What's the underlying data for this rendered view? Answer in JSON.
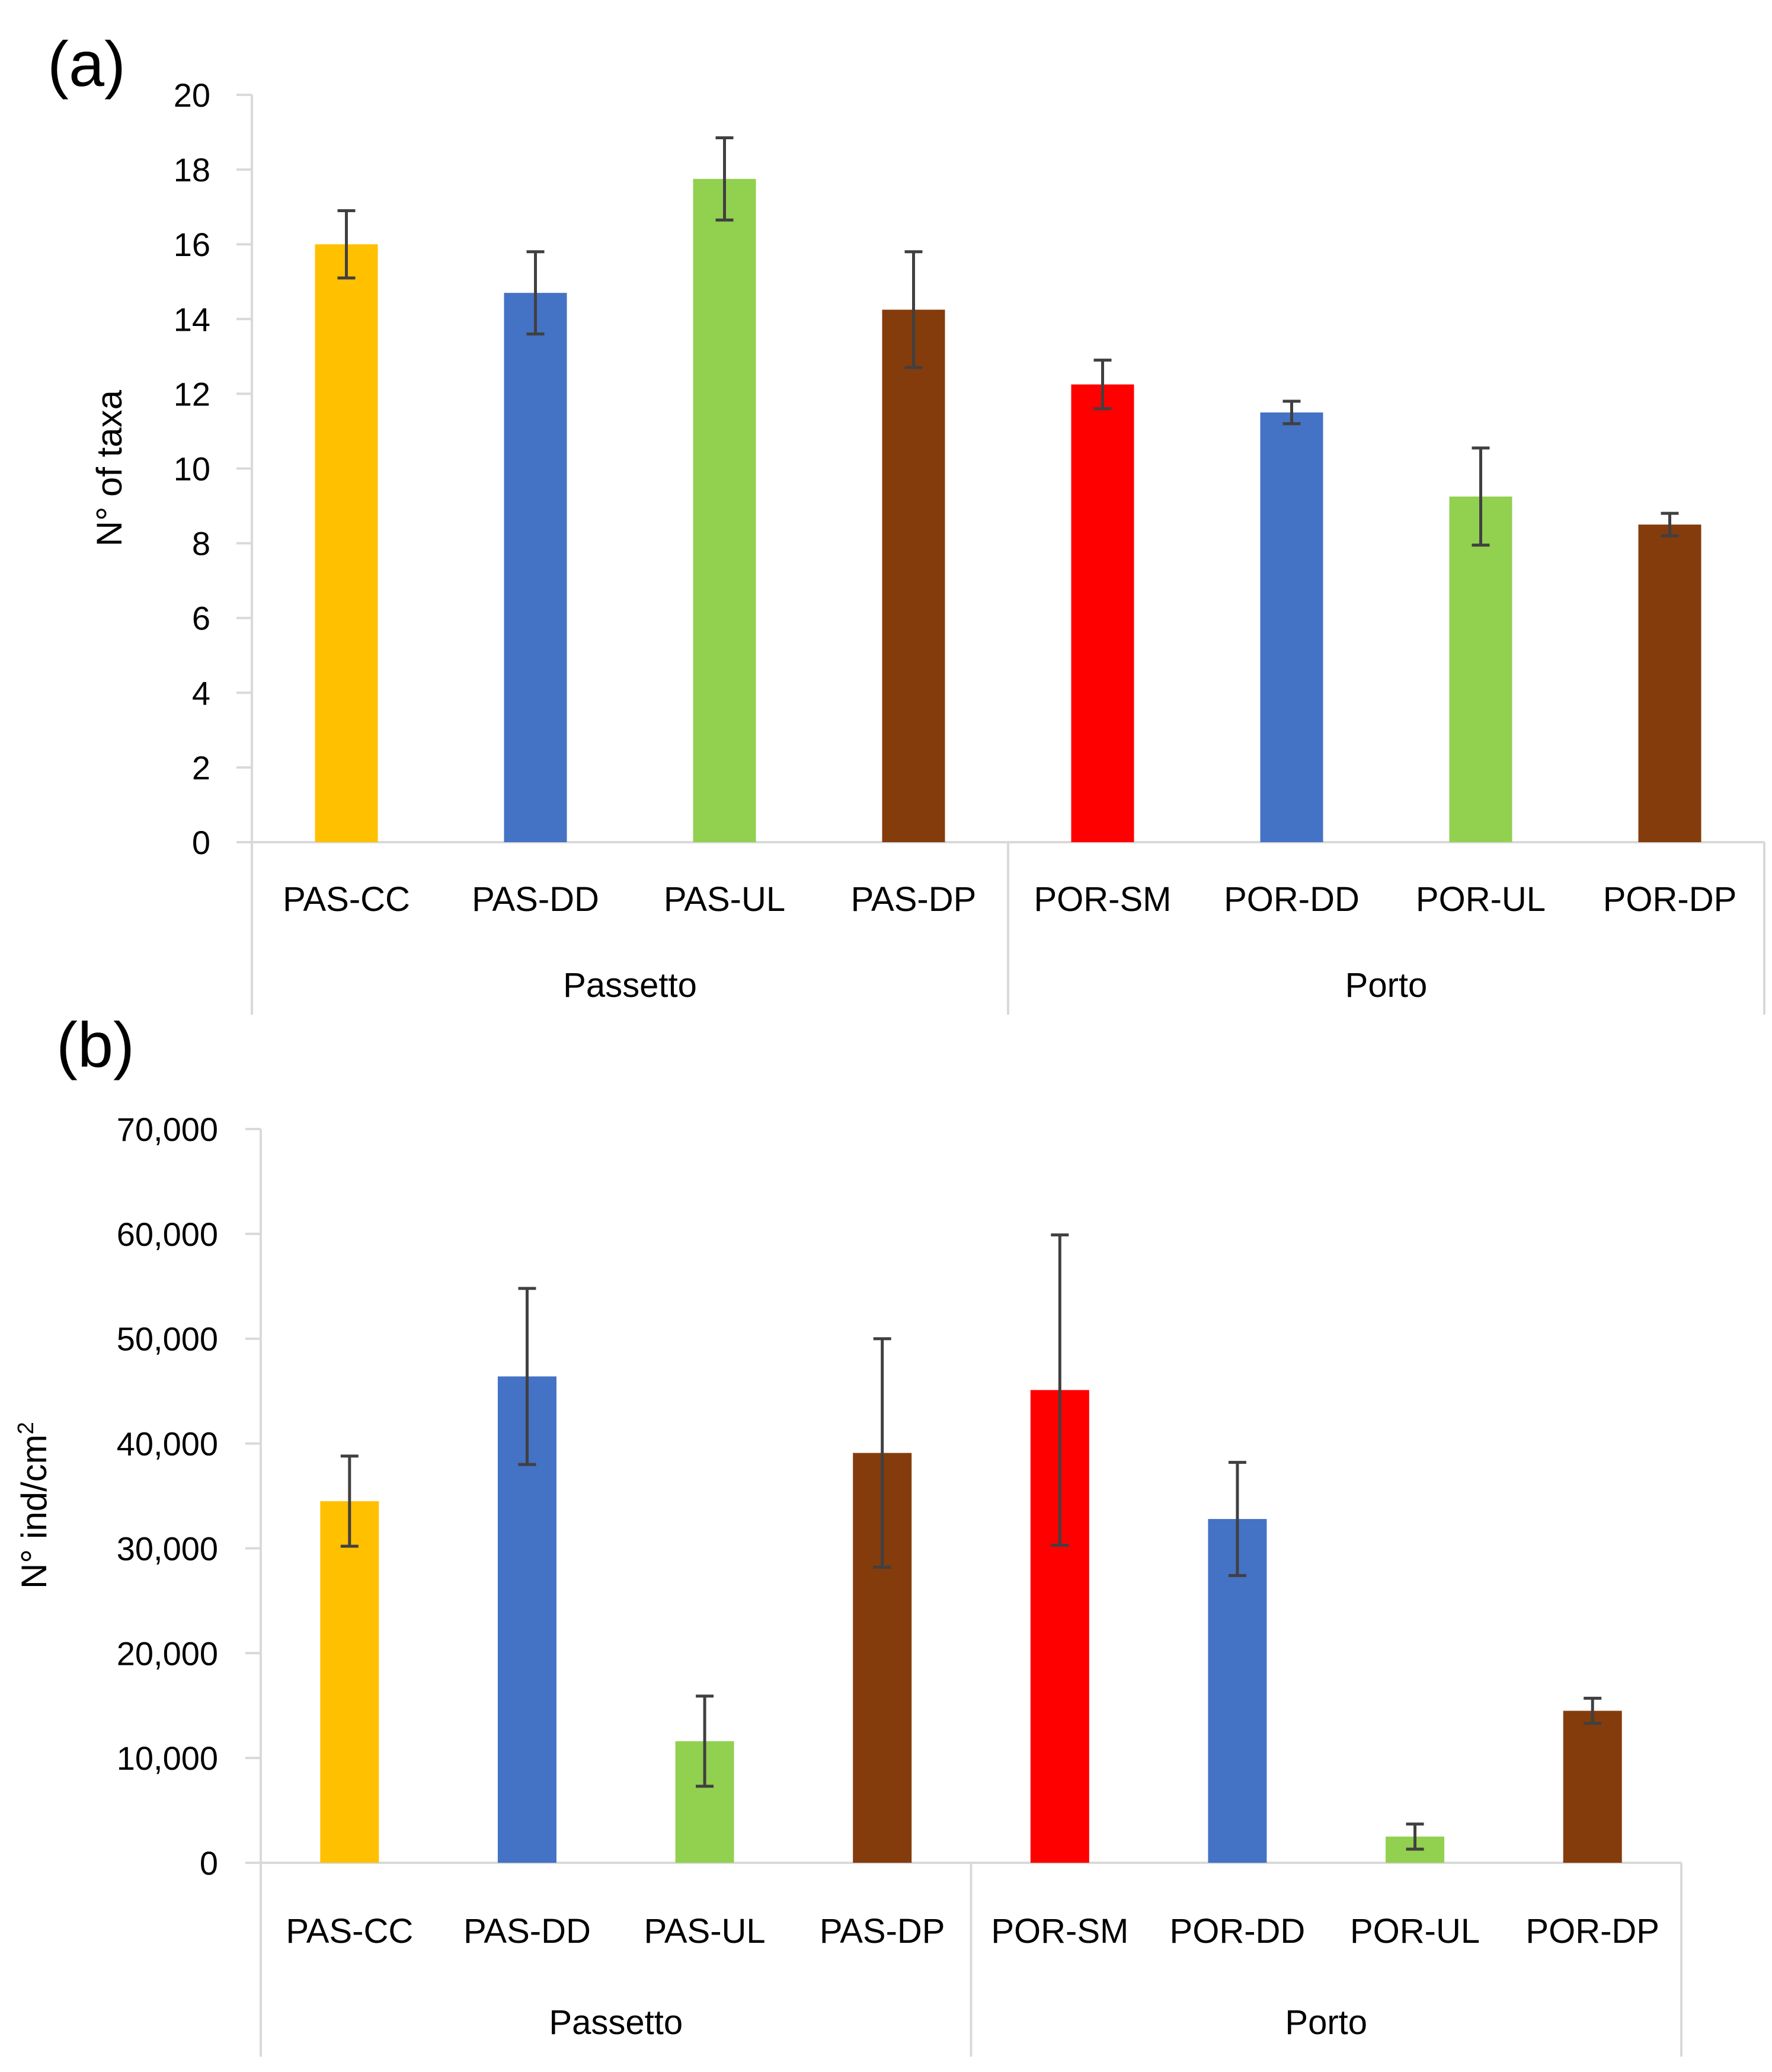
{
  "colors": {
    "CC": "#FFC000",
    "DD": "#4472C4",
    "UL": "#92D050",
    "DP": "#843C0C",
    "SM": "#FF0000",
    "axis": "#D9D9D9",
    "error_bar": "#404040"
  },
  "chart_data": [
    {
      "type": "bar",
      "panel_label": "(a)",
      "ylabel": "N° of taxa",
      "ylim": [
        0,
        20
      ],
      "yticks": [
        0,
        2,
        4,
        6,
        8,
        10,
        12,
        14,
        16,
        18,
        20
      ],
      "ytick_labels": [
        "0",
        "2",
        "4",
        "6",
        "8",
        "10",
        "12",
        "14",
        "16",
        "18",
        "20"
      ],
      "categories": [
        "PAS-CC",
        "PAS-DD",
        "PAS-UL",
        "PAS-DP",
        "POR-SM",
        "POR-DD",
        "POR-UL",
        "POR-DP"
      ],
      "groups": [
        {
          "name": "Passetto",
          "size": 4
        },
        {
          "name": "Porto",
          "size": 4
        }
      ],
      "values": [
        16.0,
        14.7,
        17.75,
        14.25,
        12.25,
        11.5,
        9.25,
        8.5
      ],
      "errors": [
        0.9,
        1.1,
        1.1,
        1.55,
        0.65,
        0.3,
        1.3,
        0.3
      ],
      "bar_colors": [
        "CC",
        "DD",
        "UL",
        "DP",
        "SM",
        "DD",
        "UL",
        "DP"
      ],
      "grid": false,
      "legend": "none"
    },
    {
      "type": "bar",
      "panel_label": "(b)",
      "ylabel": "N° ind/cm",
      "ylabel_superscript": "2",
      "ylim": [
        0,
        70000
      ],
      "yticks": [
        0,
        10000,
        20000,
        30000,
        40000,
        50000,
        60000,
        70000
      ],
      "ytick_labels": [
        "0",
        "10,000",
        "20,000",
        "30,000",
        "40,000",
        "50,000",
        "60,000",
        "70,000"
      ],
      "categories": [
        "PAS-CC",
        "PAS-DD",
        "PAS-UL",
        "PAS-DP",
        "POR-SM",
        "POR-DD",
        "POR-UL",
        "POR-DP"
      ],
      "groups": [
        {
          "name": "Passetto",
          "size": 4
        },
        {
          "name": "Porto",
          "size": 4
        }
      ],
      "values": [
        34500,
        46400,
        11600,
        39100,
        45100,
        32800,
        2500,
        14500
      ],
      "errors": [
        4300,
        8400,
        4300,
        10900,
        14800,
        5400,
        1200,
        1200
      ],
      "bar_colors": [
        "CC",
        "DD",
        "UL",
        "DP",
        "SM",
        "DD",
        "UL",
        "DP"
      ],
      "grid": false,
      "legend": "none"
    }
  ]
}
